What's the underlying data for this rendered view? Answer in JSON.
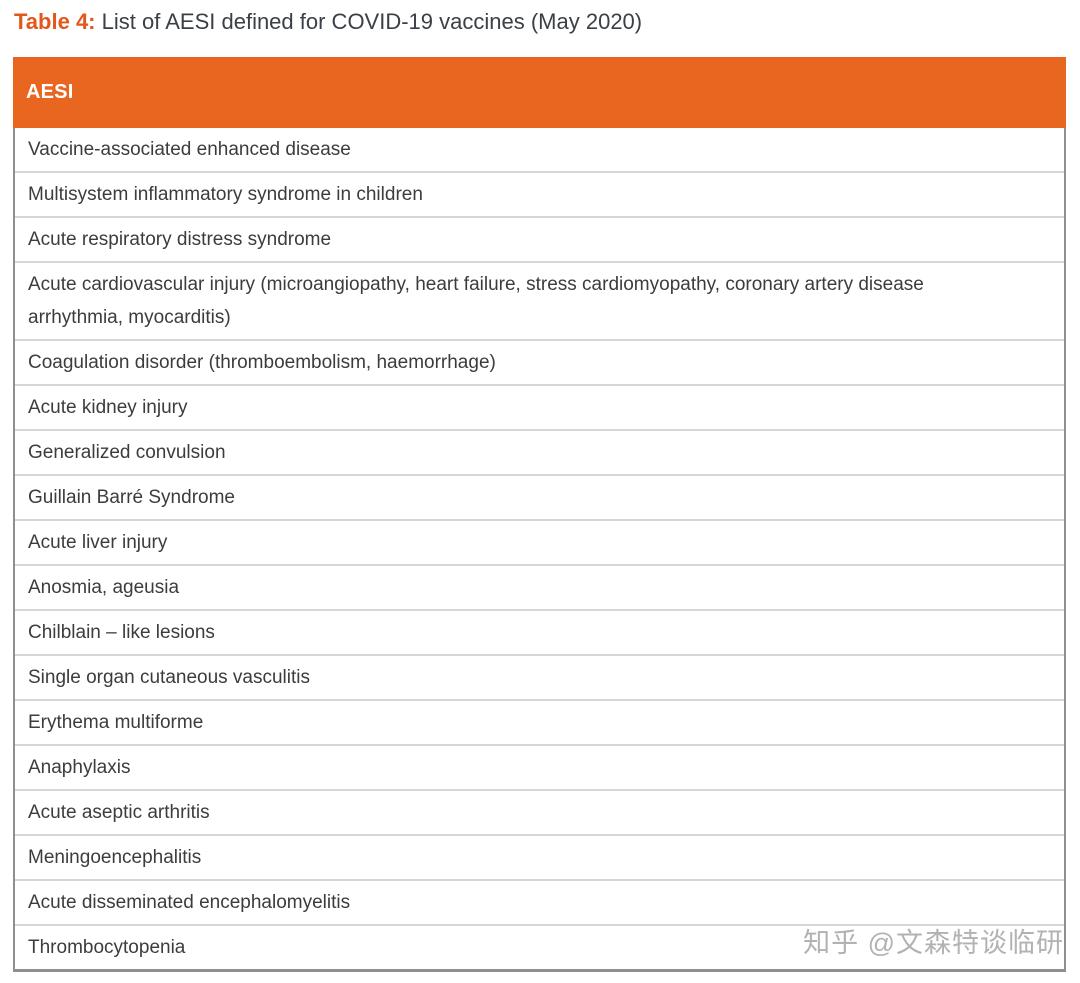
{
  "page": {
    "title_prefix": "Table 4:",
    "title_rest": "List of AESI defined for COVID-19 vaccines (May 2020)"
  },
  "table": {
    "header": "AESI",
    "rows": [
      "Vaccine-associated enhanced disease",
      "Multisystem inflammatory syndrome in children",
      "Acute respiratory distress syndrome",
      "Acute cardiovascular injury (microangiopathy, heart failure, stress cardiomyopathy, coronary artery disease arrhythmia, myocarditis)",
      "Coagulation disorder (thromboembolism, haemorrhage)",
      "Acute kidney injury",
      "Generalized convulsion",
      "Guillain Barré Syndrome",
      "Acute liver injury",
      "Anosmia, ageusia",
      "Chilblain – like lesions",
      "Single organ cutaneous vasculitis",
      "Erythema multiforme",
      "Anaphylaxis",
      "Acute aseptic arthritis",
      "Meningoencephalitis",
      "Acute disseminated encephalomyelitis",
      "Thrombocytopenia"
    ]
  },
  "watermark": "知乎 @文森特谈临研",
  "colors": {
    "accent_orange": "#E8661F",
    "title_accent": "#E2571C",
    "header_text": "#FFFFFF",
    "row_text": "#3C3C3C",
    "outer_border": "#8F8F8F",
    "row_divider": "#D6D6D6",
    "watermark": "#A4A4A4"
  }
}
